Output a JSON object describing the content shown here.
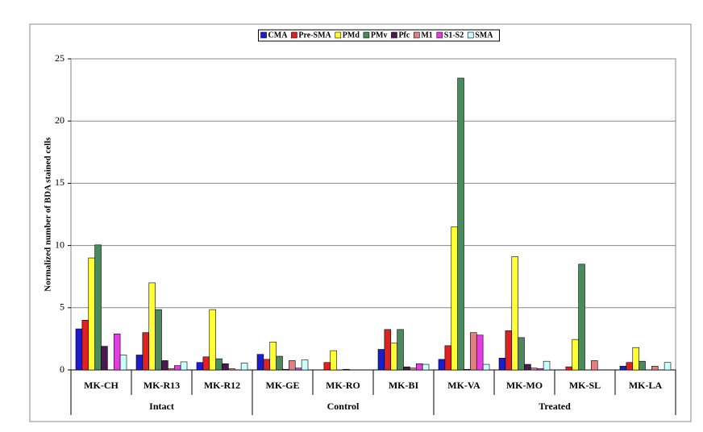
{
  "chart_data": {
    "type": "bar",
    "y_label": "Normalized number of BDA stained cells",
    "groups": [
      {
        "name": "Intact",
        "categories": [
          "MK-CH",
          "MK-R13",
          "MK-R12"
        ]
      },
      {
        "name": "Control",
        "categories": [
          "MK-GE",
          "MK-RO",
          "MK-BI"
        ]
      },
      {
        "name": "Treated",
        "categories": [
          "MK-VA",
          "MK-MO",
          "MK-SL",
          "MK-LA"
        ]
      }
    ],
    "series": [
      {
        "name": "CMA",
        "color": "#1c1ccc",
        "values": [
          3.3,
          1.2,
          0.6,
          1.25,
          0,
          1.65,
          0.85,
          0.95,
          0,
          0.3
        ]
      },
      {
        "name": "Pre-SMA",
        "color": "#dd2222",
        "values": [
          4.0,
          3.0,
          1.05,
          0.85,
          0.6,
          3.25,
          1.95,
          3.15,
          0.25,
          0.6
        ]
      },
      {
        "name": "PMd",
        "color": "#ffff33",
        "values": [
          9.0,
          7.0,
          4.85,
          2.25,
          1.55,
          2.15,
          11.5,
          9.1,
          2.45,
          1.8
        ]
      },
      {
        "name": "PMv",
        "color": "#4a8a5c",
        "values": [
          10.05,
          4.85,
          0.9,
          1.1,
          0,
          3.25,
          23.45,
          2.6,
          8.5,
          0.7
        ]
      },
      {
        "name": "Pfc",
        "color": "#4a1a4e",
        "values": [
          1.9,
          0.75,
          0.5,
          0.05,
          0.05,
          0.25,
          0.05,
          0.45,
          0,
          0
        ]
      },
      {
        "name": "M1",
        "color": "#e08080",
        "values": [
          0,
          0.1,
          0.1,
          0.75,
          0,
          0.15,
          3.0,
          0.15,
          0.75,
          0.3
        ]
      },
      {
        "name": "S1-S2",
        "color": "#e040e0",
        "values": [
          2.9,
          0.35,
          0,
          0.15,
          0,
          0.5,
          2.8,
          0.1,
          0,
          0
        ]
      },
      {
        "name": "SMA",
        "color": "#ccffff",
        "values": [
          1.2,
          0.65,
          0.55,
          0.8,
          0,
          0.45,
          0.45,
          0.7,
          0,
          0.6
        ]
      }
    ],
    "ylim": [
      0,
      25
    ],
    "yticks": [
      0,
      5,
      10,
      15,
      20,
      25
    ],
    "grid": true
  }
}
